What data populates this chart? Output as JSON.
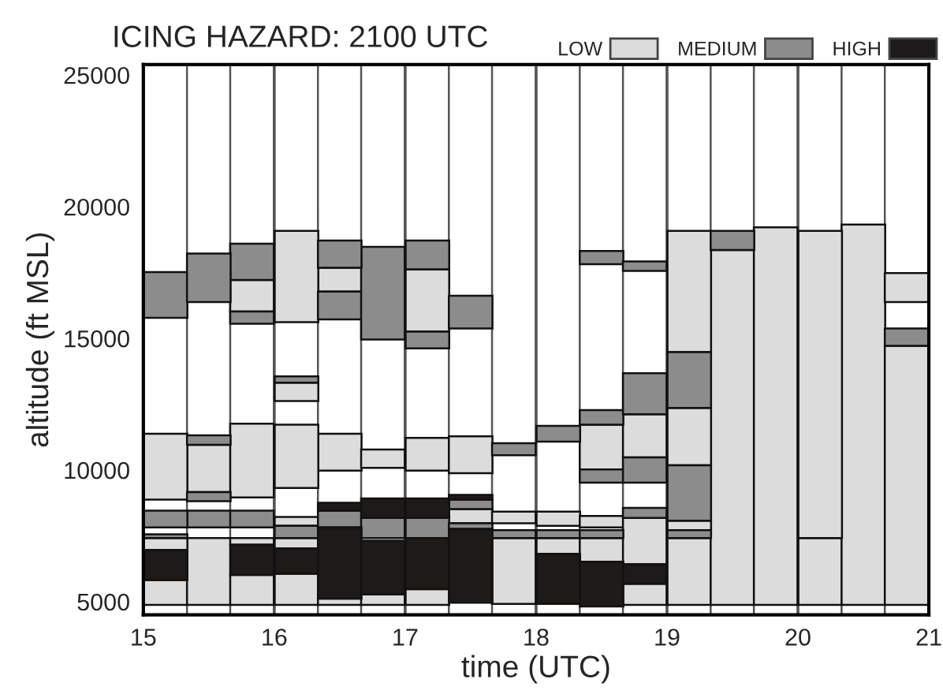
{
  "chart_data": {
    "type": "bar",
    "title": "ICING HAZARD: 2100 UTC",
    "xlabel": "time (UTC)",
    "ylabel": "altitude (ft MSL)",
    "x": [
      15.17,
      15.5,
      15.83,
      16.17,
      16.5,
      16.83,
      17.17,
      17.5,
      17.83,
      18.17,
      18.5,
      18.83,
      19.17,
      19.5,
      19.83,
      20.17,
      20.5,
      20.83
    ],
    "xlim": [
      15,
      21
    ],
    "xticks": [
      15,
      16,
      17,
      18,
      19,
      20,
      21
    ],
    "ylim": [
      4500,
      25400
    ],
    "yticks": [
      5000,
      10000,
      15000,
      20000,
      25000
    ],
    "legend": "top right",
    "series": [
      {
        "name": "LOW",
        "color": "#dcdcdc",
        "base": [
          4880,
          4880,
          4880,
          4880,
          4880,
          4880,
          4880,
          7980,
          4920,
          6820,
          6520,
          4880,
          4880,
          4880,
          4880,
          4880,
          4880,
          4880
        ],
        "values": [
          940,
          2540,
          1140,
          1180,
          240,
          400,
          600,
          540,
          2500,
          600,
          900,
          800,
          2540,
          13480,
          14340,
          2540,
          14440,
          9840
        ]
      },
      {
        "color": "#dcdcdc",
        "base": [
          6960,
          9160,
          7160,
          7020,
          9980,
          null,
          9980,
          9880,
          7980,
          7880,
          7820,
          6420,
          7720,
          null,
          null,
          7420,
          null,
          16380
        ],
        "values": [
          460,
          1800,
          260,
          400,
          1400,
          null,
          1240,
          1400,
          440,
          540,
          440,
          1760,
          360,
          null,
          null,
          11660,
          null,
          1100
        ]
      },
      {
        "color": "#dcdcdc",
        "base": [
          8880,
          null,
          8960,
          7880,
          16780,
          10080,
          15260,
          null,
          null,
          null,
          10020,
          10480,
          10180,
          null,
          null,
          null,
          null,
          null
        ],
        "values": [
          2500,
          null,
          2800,
          340,
          900,
          700,
          2360,
          null,
          null,
          null,
          1700,
          1640,
          2180,
          null,
          null,
          null,
          null,
          null
        ]
      },
      {
        "color": "#dcdcdc",
        "base": [
          null,
          null,
          16020,
          9320,
          null,
          null,
          null,
          null,
          null,
          null,
          null,
          null,
          14480,
          null,
          null,
          null,
          null,
          null
        ],
        "values": [
          null,
          null,
          1200,
          2400,
          null,
          null,
          null,
          null,
          null,
          null,
          null,
          null,
          4600,
          null,
          null,
          null,
          null,
          null
        ]
      },
      {
        "color": "#dcdcdc",
        "base": [
          null,
          null,
          null,
          12620,
          null,
          null,
          null,
          null,
          null,
          null,
          null,
          null,
          null,
          null,
          null,
          null,
          null,
          null
        ],
        "values": [
          null,
          null,
          null,
          700,
          null,
          null,
          null,
          null,
          null,
          null,
          null,
          null,
          null,
          null,
          null,
          null,
          null,
          null
        ]
      },
      {
        "color": "#dcdcdc",
        "base": [
          null,
          null,
          null,
          15620,
          null,
          null,
          null,
          null,
          null,
          null,
          null,
          null,
          null,
          null,
          null,
          null,
          null,
          null
        ],
        "values": [
          null,
          null,
          null,
          3460,
          null,
          null,
          null,
          null,
          null,
          null,
          null,
          null,
          null,
          null,
          null,
          null,
          null,
          null
        ]
      },
      {
        "name": "MEDIUM",
        "color": "#8c8c8c",
        "base": [
          7420,
          7820,
          7820,
          7420,
          7820,
          7420,
          7420,
          7760,
          7420,
          7420,
          7420,
          8180,
          7420,
          18360,
          null,
          null,
          null,
          14720
        ],
        "values": [
          140,
          640,
          640,
          460,
          640,
          760,
          760,
          220,
          300,
          300,
          300,
          380,
          300,
          720,
          null,
          null,
          null,
          660
        ]
      },
      {
        "color": "#8c8c8c",
        "base": [
          7820,
          8820,
          15560,
          13320,
          15720,
          14960,
          14620,
          8520,
          10560,
          11080,
          9520,
          9520,
          8080,
          null,
          null,
          null,
          null,
          null
        ],
        "values": [
          640,
          340,
          460,
          240,
          1060,
          3520,
          640,
          360,
          460,
          600,
          500,
          960,
          2100,
          null,
          null,
          null,
          null,
          null
        ]
      },
      {
        "color": "#8c8c8c",
        "base": [
          15780,
          10960,
          17220,
          null,
          17680,
          null,
          17620,
          15380,
          null,
          null,
          11720,
          12120,
          12360,
          null,
          null,
          null,
          null,
          null
        ],
        "values": [
          1740,
          360,
          1380,
          null,
          1040,
          null,
          1100,
          1240,
          null,
          null,
          560,
          1560,
          2120,
          null,
          null,
          null,
          null,
          null
        ]
      },
      {
        "color": "#8c8c8c",
        "base": [
          null,
          16380,
          null,
          null,
          null,
          null,
          null,
          null,
          null,
          null,
          17820,
          17560,
          null,
          null,
          null,
          null,
          null,
          null
        ],
        "values": [
          null,
          1840,
          null,
          null,
          null,
          null,
          null,
          null,
          null,
          null,
          500,
          360,
          null,
          null,
          null,
          null,
          null,
          null
        ]
      },
      {
        "name": "HIGH",
        "color": "#1e1a18",
        "base": [
          5820,
          null,
          6020,
          6060,
          5120,
          5280,
          5480,
          4960,
          null,
          4920,
          4820,
          5680,
          null,
          null,
          null,
          null,
          null,
          null
        ],
        "values": [
          1140,
          null,
          1140,
          960,
          2700,
          2040,
          1940,
          2800,
          null,
          1900,
          1700,
          740,
          null,
          null,
          null,
          null,
          null,
          null
        ]
      },
      {
        "color": "#1e1a18",
        "base": [
          null,
          null,
          null,
          null,
          8460,
          8180,
          8180,
          8880,
          null,
          null,
          null,
          null,
          null,
          null,
          null,
          null,
          null,
          null
        ],
        "values": [
          null,
          null,
          null,
          null,
          300,
          740,
          740,
          180,
          null,
          null,
          null,
          null,
          null,
          null,
          null,
          null,
          null,
          null
        ]
      }
    ]
  }
}
